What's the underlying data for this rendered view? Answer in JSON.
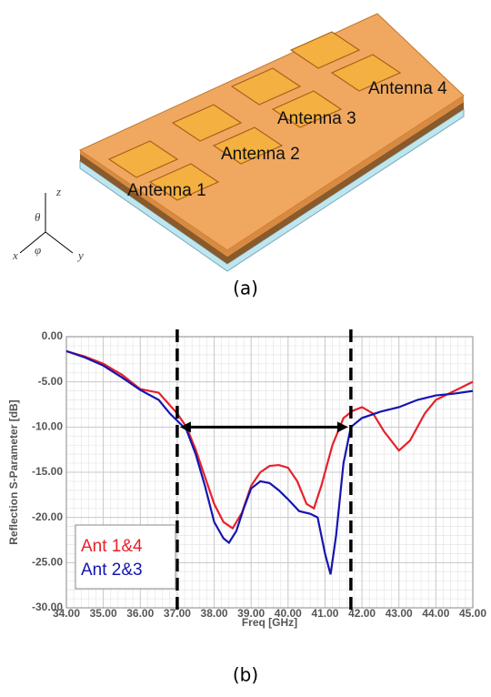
{
  "figure_a": {
    "labels": [
      "Antenna 1",
      "Antenna 2",
      "Antenna 3",
      "Antenna 4"
    ],
    "axes": [
      "z",
      "x",
      "y"
    ],
    "angles": [
      "θ",
      "φ"
    ],
    "caption": "(a)"
  },
  "caption_b": "(b)",
  "chart_data": {
    "type": "line",
    "y_label": "Reflection S-Parameter [dB]",
    "x_label": "Freq [GHz]",
    "xlim": [
      34,
      45
    ],
    "ylim": [
      -30,
      0
    ],
    "xticks": [
      {
        "value": 34,
        "label": "34.00"
      },
      {
        "value": 35,
        "label": "35.00"
      },
      {
        "value": 36,
        "label": "36.00"
      },
      {
        "value": 37,
        "label": "37.00"
      },
      {
        "value": 38,
        "label": "38.00"
      },
      {
        "value": 39,
        "label": "39.00"
      },
      {
        "value": 40,
        "label": "40.00"
      },
      {
        "value": 41,
        "label": "41.00"
      },
      {
        "value": 42,
        "label": "42.00"
      },
      {
        "value": 43,
        "label": "43.00"
      },
      {
        "value": 44,
        "label": "44.00"
      },
      {
        "value": 45,
        "label": "45.00"
      }
    ],
    "yticks": [
      {
        "value": 0,
        "label": "0.00"
      },
      {
        "value": -5,
        "label": "-5.00"
      },
      {
        "value": -10,
        "label": "-10.00"
      },
      {
        "value": -15,
        "label": "-15.00"
      },
      {
        "value": -20,
        "label": "-20.00"
      },
      {
        "value": -25,
        "label": "-25.00"
      },
      {
        "value": -30,
        "label": "-30.00"
      }
    ],
    "grid": true,
    "legend": "lower left",
    "series": [
      {
        "name": "Ant 1&4",
        "color": "#e8202a",
        "x": [
          34,
          34.5,
          35,
          35.5,
          36,
          36.5,
          37,
          37.25,
          37.5,
          37.75,
          38,
          38.25,
          38.5,
          38.75,
          39,
          39.25,
          39.5,
          39.75,
          40,
          40.25,
          40.5,
          40.7,
          40.9,
          41.2,
          41.5,
          41.75,
          42,
          42.3,
          42.6,
          43,
          43.3,
          43.7,
          44,
          44.5,
          45
        ],
        "values": [
          -1.6,
          -2.2,
          -3.0,
          -4.2,
          -5.8,
          -6.2,
          -8.5,
          -10.0,
          -12.5,
          -15.5,
          -18.5,
          -20.5,
          -21.2,
          -19.5,
          -16.5,
          -15.0,
          -14.3,
          -14.2,
          -14.5,
          -16.0,
          -18.5,
          -19.0,
          -16.5,
          -12.0,
          -9.0,
          -8.2,
          -7.8,
          -8.5,
          -10.5,
          -12.6,
          -11.5,
          -8.5,
          -7.0,
          -6.0,
          -5.0
        ]
      },
      {
        "name": "Ant 2&3",
        "color": "#1515b0",
        "x": [
          34,
          34.5,
          35,
          35.5,
          36,
          36.5,
          36.8,
          37,
          37.25,
          37.5,
          37.75,
          38,
          38.25,
          38.4,
          38.6,
          38.8,
          39,
          39.25,
          39.5,
          39.75,
          40,
          40.3,
          40.6,
          40.8,
          41,
          41.15,
          41.3,
          41.5,
          41.7,
          42,
          42.5,
          43,
          43.5,
          44,
          44.5,
          45
        ],
        "values": [
          -1.6,
          -2.3,
          -3.2,
          -4.5,
          -5.9,
          -7.0,
          -8.5,
          -9.3,
          -10.3,
          -13.0,
          -16.5,
          -20.5,
          -22.3,
          -22.8,
          -21.5,
          -19.0,
          -16.8,
          -16.0,
          -16.2,
          -17.0,
          -18.0,
          -19.3,
          -19.6,
          -20.0,
          -24.0,
          -26.3,
          -22.0,
          -14.0,
          -10.0,
          -9.0,
          -8.3,
          -7.8,
          -7.0,
          -6.5,
          -6.3,
          -6.0
        ]
      }
    ],
    "bandwidth": {
      "x": [
        37.0,
        41.7
      ],
      "y": -10
    }
  }
}
